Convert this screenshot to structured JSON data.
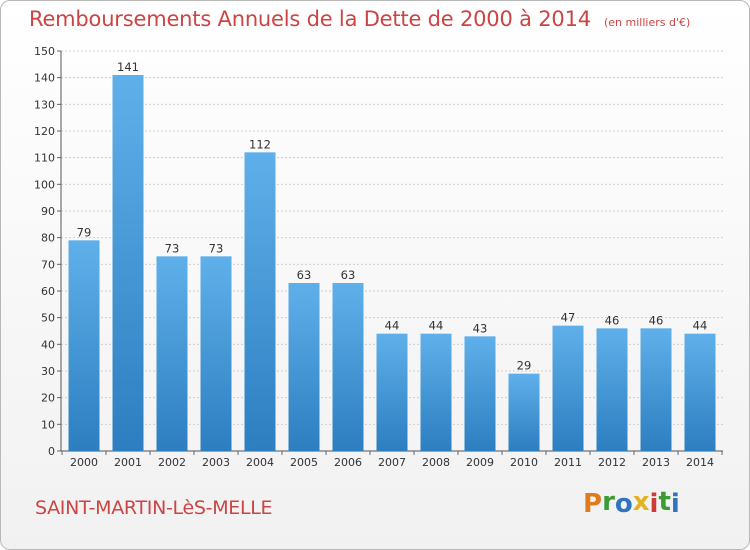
{
  "title": "Remboursements Annuels de la Dette de 2000 à 2014",
  "subtitle": "(en milliers d'€)",
  "town": "SAINT-MARTIN-LèS-MELLE",
  "logo": {
    "text": "Proxiti",
    "letters": [
      {
        "ch": "P",
        "color": "#e07a1f"
      },
      {
        "ch": "r",
        "color": "#3d9b35"
      },
      {
        "ch": "o",
        "color": "#2f74c0"
      },
      {
        "ch": "x",
        "color": "#e4b21f"
      },
      {
        "ch": "i",
        "color": "#cc3a3a"
      },
      {
        "ch": "t",
        "color": "#3d9b35"
      },
      {
        "ch": "i",
        "color": "#2f74c0"
      }
    ]
  },
  "colors": {
    "bar_top": "#5fb0ea",
    "bar_bottom": "#2d7ec0",
    "title": "#cc4444",
    "grid": "#cfcfcf"
  },
  "chart_data": {
    "type": "bar",
    "categories": [
      "2000",
      "2001",
      "2002",
      "2003",
      "2004",
      "2005",
      "2006",
      "2007",
      "2008",
      "2009",
      "2010",
      "2011",
      "2012",
      "2013",
      "2014"
    ],
    "values": [
      79,
      141,
      73,
      73,
      112,
      63,
      63,
      44,
      44,
      43,
      29,
      47,
      46,
      46,
      44
    ],
    "ylim": [
      0,
      150
    ],
    "yticks": [
      0,
      10,
      20,
      30,
      40,
      50,
      60,
      70,
      80,
      90,
      100,
      110,
      120,
      130,
      140,
      150
    ],
    "grid": true,
    "title": "Remboursements Annuels de la Dette de 2000 à 2014",
    "xlabel": "",
    "ylabel": ""
  }
}
